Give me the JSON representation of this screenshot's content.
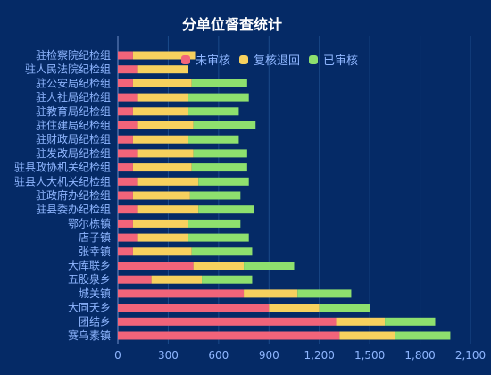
{
  "chart_data": {
    "type": "bar",
    "orientation": "horizontal",
    "stacked": true,
    "title": "分单位督查统计",
    "categories": [
      "驻检察院纪检组",
      "驻人民法院纪检组",
      "驻公安局纪检组",
      "驻人社局纪检组",
      "驻教育局纪检组",
      "驻住建局纪检组",
      "驻财政局纪检组",
      "驻发改局纪检组",
      "驻县政协机关纪检组",
      "驻县人大机关纪检组",
      "驻政府办纪检组",
      "驻县委办纪检组",
      "鄂尔栋镇",
      "店子镇",
      "张幸镇",
      "大库联乡",
      "五股泉乡",
      "城关镇",
      "大同夭乡",
      "团结乡",
      "赛乌素镇"
    ],
    "series": [
      {
        "name": "未审核",
        "color": "#f2647a",
        "values": [
          90,
          120,
          90,
          120,
          90,
          120,
          90,
          120,
          90,
          120,
          90,
          120,
          90,
          120,
          90,
          450,
          200,
          750,
          900,
          1300,
          1320
        ]
      },
      {
        "name": "复核退回",
        "color": "#f7d15e",
        "values": [
          370,
          300,
          350,
          300,
          330,
          330,
          330,
          330,
          350,
          360,
          340,
          360,
          330,
          300,
          350,
          300,
          300,
          320,
          300,
          290,
          330
        ]
      },
      {
        "name": "已审核",
        "color": "#8ee06e",
        "values": [
          0,
          0,
          330,
          360,
          300,
          370,
          300,
          320,
          330,
          300,
          300,
          330,
          310,
          360,
          360,
          300,
          300,
          320,
          300,
          300,
          330
        ]
      }
    ],
    "xlim": [
      0,
      2100
    ],
    "xticks": [
      0,
      300,
      600,
      900,
      1200,
      1500,
      1800,
      2100
    ],
    "xtick_labels": [
      "0",
      "300",
      "600",
      "900",
      "1,200",
      "1,500",
      "1,800",
      "2,100"
    ],
    "grid": true,
    "legend_position": "top"
  },
  "colors": {
    "background": "#052a66",
    "axis_label": "#8fb6ff",
    "grid": "#1b4a8a"
  }
}
